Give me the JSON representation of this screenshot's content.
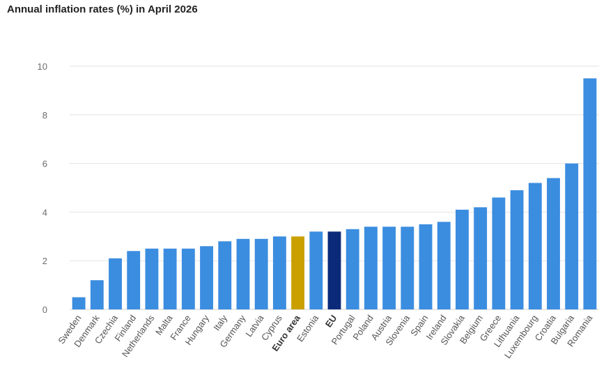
{
  "chart_data": {
    "type": "bar",
    "title": "Annual inflation rates (%) in April 2026",
    "xlabel": "",
    "ylabel": "",
    "ylim": [
      0,
      10
    ],
    "yticks": [
      0,
      2,
      4,
      6,
      8,
      10
    ],
    "grid": true,
    "categories": [
      "Sweden",
      "Denmark",
      "Czechia",
      "Finland",
      "Netherlands",
      "Malta",
      "France",
      "Hungary",
      "Italy",
      "Germany",
      "Latvia",
      "Cyprus",
      "Euro area",
      "Estonia",
      "EU",
      "Portugal",
      "Poland",
      "Austria",
      "Slovenia",
      "Spain",
      "Ireland",
      "Slovakia",
      "Belgium",
      "Greece",
      "Lithuania",
      "Luxembourg",
      "Croatia",
      "Bulgaria",
      "Romania"
    ],
    "values": [
      0.5,
      1.2,
      2.1,
      2.4,
      2.5,
      2.5,
      2.5,
      2.6,
      2.8,
      2.9,
      2.9,
      3.0,
      3.0,
      3.2,
      3.2,
      3.3,
      3.4,
      3.4,
      3.4,
      3.5,
      3.6,
      4.1,
      4.2,
      4.6,
      4.9,
      5.2,
      5.4,
      6.0,
      9.5
    ],
    "highlighted": {
      "Euro area": "#c9a000",
      "EU": "#0b2a7a"
    },
    "bold_categories": [
      "Euro area",
      "EU"
    ],
    "colors": {
      "bar": "#3b8de0",
      "grid": "#e3e3e3",
      "axis": "#cfcfcf"
    }
  }
}
